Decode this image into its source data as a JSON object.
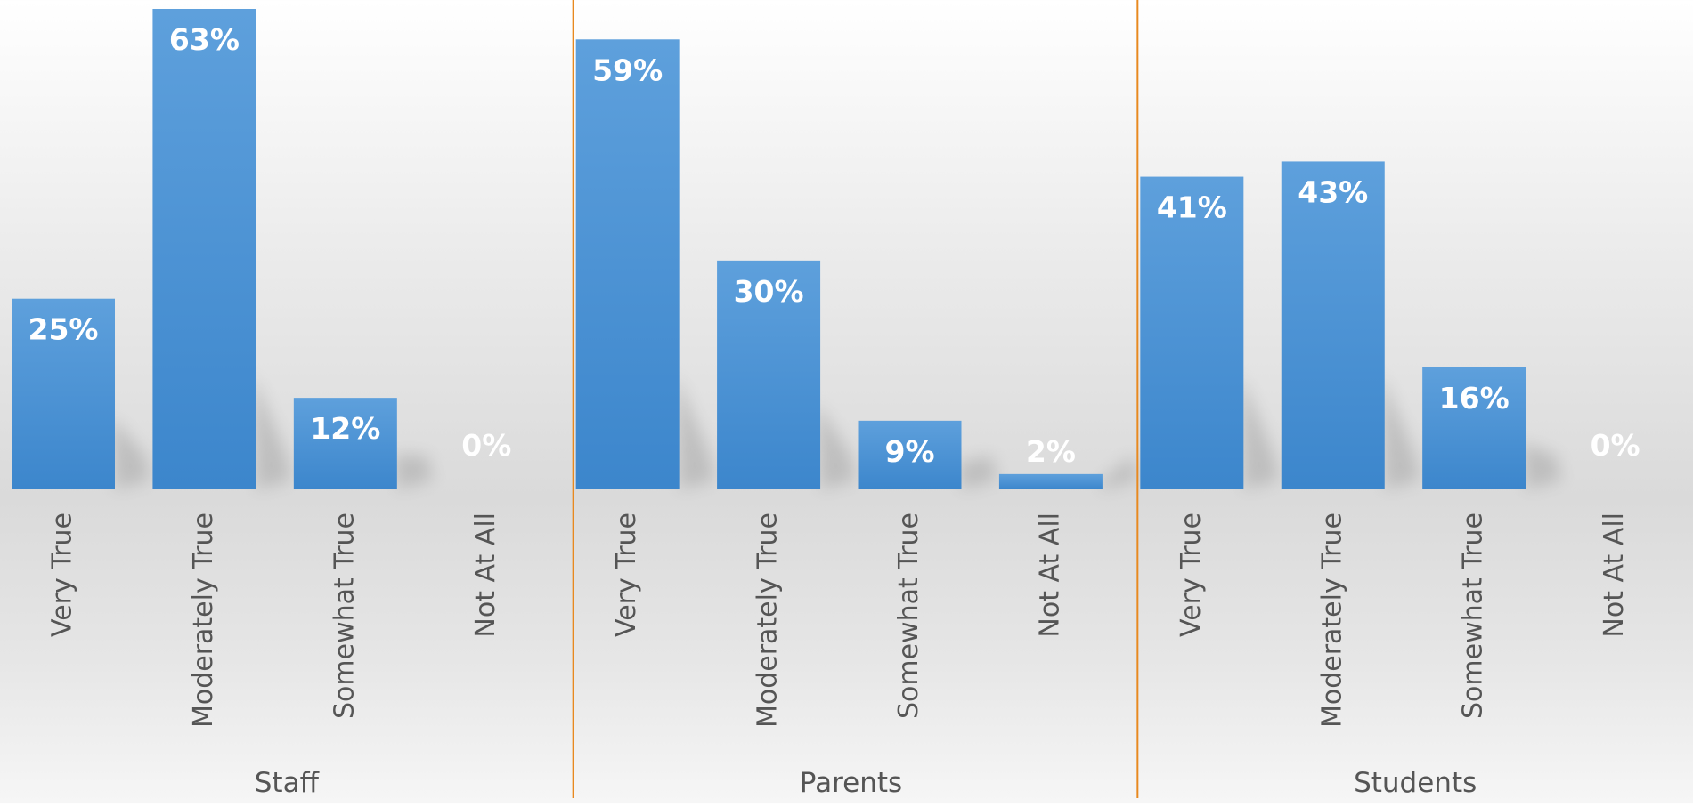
{
  "chart_data": {
    "type": "bar",
    "categories": [
      "Very True",
      "Moderately True",
      "Somewhat True",
      "Not At All"
    ],
    "groups": [
      {
        "name": "Staff",
        "values": [
          25,
          63,
          12,
          0
        ],
        "labels": [
          "25%",
          "63%",
          "12%",
          "0%"
        ]
      },
      {
        "name": "Parents",
        "values": [
          59,
          30,
          9,
          2
        ],
        "labels": [
          "59%",
          "30%",
          "9%",
          "2%"
        ]
      },
      {
        "name": "Students",
        "values": [
          41,
          43,
          16,
          0
        ],
        "labels": [
          "41%",
          "43%",
          "16%",
          "0%"
        ]
      }
    ],
    "ylim": [
      0,
      63
    ],
    "grid": false,
    "colors": {
      "bar": "#4a90d4",
      "bar_top": "#5ea0dc",
      "bar_bottom": "#3c86cc",
      "separator": "#e8891f",
      "text_on_bar": "#ffffff",
      "axis_text": "#555555"
    }
  }
}
